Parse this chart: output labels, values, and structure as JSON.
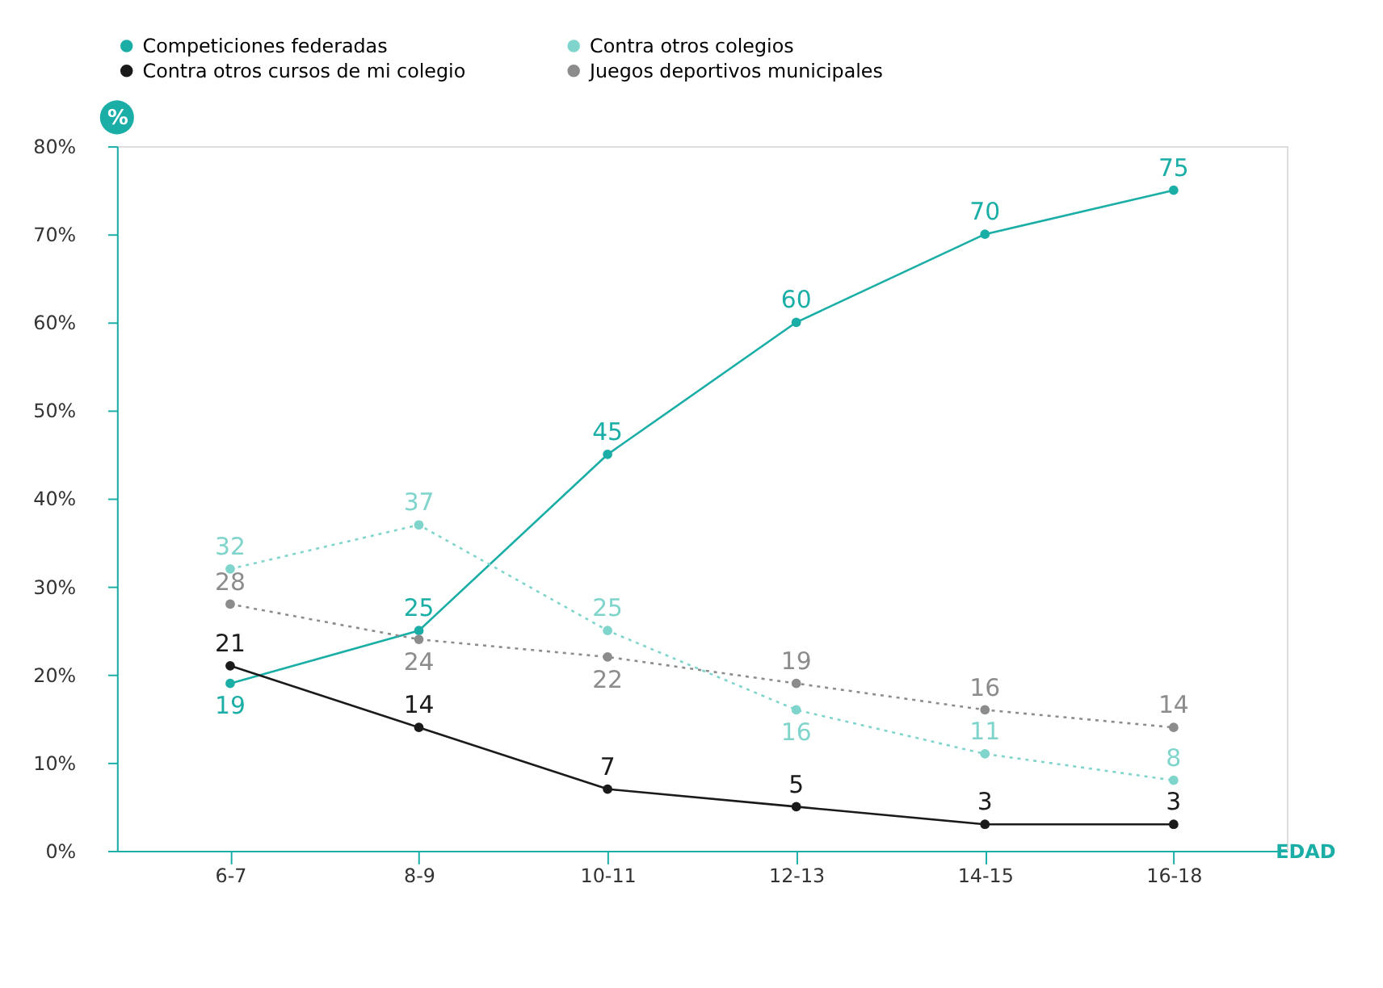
{
  "chart_data": {
    "type": "line",
    "xlabel": "EDAD",
    "ylabel": "%",
    "categories": [
      "6-7",
      "8-9",
      "10-11",
      "12-13",
      "14-15",
      "16-18"
    ],
    "series": [
      {
        "name": "Competiciones federadas",
        "color": "#1aaea6",
        "values": [
          19,
          25,
          45,
          60,
          70,
          75
        ],
        "line_style": "solid"
      },
      {
        "name": "Contra otros colegios",
        "color": "#7fd4cc",
        "values": [
          32,
          37,
          25,
          16,
          11,
          8
        ],
        "line_style": "dotted"
      },
      {
        "name": "Contra otros cursos de mi colegio",
        "color": "#1a1a1a",
        "values": [
          21,
          14,
          7,
          5,
          3,
          3
        ],
        "line_style": "solid"
      },
      {
        "name": "Juegos deportivos municipales",
        "color": "#8c8c8c",
        "values": [
          28,
          24,
          22,
          19,
          16,
          14
        ],
        "line_style": "dotted"
      }
    ],
    "ylim": [
      0,
      80
    ],
    "yticks": [
      {
        "value": 0,
        "label": "0%"
      },
      {
        "value": 10,
        "label": "10%"
      },
      {
        "value": 20,
        "label": "20%"
      },
      {
        "value": 30,
        "label": "30%"
      },
      {
        "value": 40,
        "label": "40%"
      },
      {
        "value": 50,
        "label": "50%"
      },
      {
        "value": 60,
        "label": "60%"
      },
      {
        "value": 70,
        "label": "70%"
      },
      {
        "value": 80,
        "label": "80%"
      }
    ],
    "data_labels": true,
    "marker": "circle",
    "grid": false,
    "legend": "top"
  }
}
